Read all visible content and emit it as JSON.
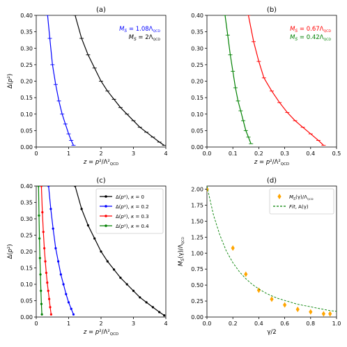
{
  "chart_data": [
    {
      "type": "line",
      "title": "(a)",
      "xlabel": "z = p²/Λ²QCD",
      "ylabel": "Δ(p²)",
      "xlim": [
        0,
        4
      ],
      "ylim": [
        0,
        0.4
      ],
      "xticks": [
        "0",
        "1",
        "2",
        "3",
        "4"
      ],
      "yticks": [
        "0.00",
        "0.05",
        "0.10",
        "0.15",
        "0.20",
        "0.25",
        "0.30",
        "0.35",
        "0.40"
      ],
      "legend_position": "top-right",
      "annotations": [
        {
          "text": "MS = 1.08ΛQCD",
          "color": "#0000ff"
        },
        {
          "text": "MS = 2ΛQCD",
          "color": "#000000"
        }
      ],
      "series": [
        {
          "color": "#0000ff",
          "marker": "plus",
          "x": [
            0.35,
            0.42,
            0.5,
            0.6,
            0.7,
            0.8,
            0.9,
            1.0,
            1.08,
            1.15
          ],
          "y": [
            0.4,
            0.33,
            0.25,
            0.19,
            0.14,
            0.1,
            0.07,
            0.04,
            0.02,
            0.005
          ]
        },
        {
          "color": "#000000",
          "marker": "plus",
          "x": [
            1.2,
            1.4,
            1.6,
            1.8,
            2.0,
            2.2,
            2.4,
            2.6,
            2.8,
            3.0,
            3.2,
            3.4,
            3.6,
            3.8,
            3.95
          ],
          "y": [
            0.4,
            0.33,
            0.28,
            0.24,
            0.2,
            0.17,
            0.145,
            0.12,
            0.1,
            0.08,
            0.06,
            0.045,
            0.03,
            0.015,
            0.005
          ]
        }
      ]
    },
    {
      "type": "line",
      "title": "(b)",
      "xlabel": "z = p²/Λ²QCD",
      "ylabel": "",
      "xlim": [
        0,
        0.5
      ],
      "ylim": [
        0,
        0.4
      ],
      "xticks": [
        "0.0",
        "0.1",
        "0.2",
        "0.3",
        "0.4",
        "0.5"
      ],
      "yticks": [
        "0.00",
        "0.05",
        "0.10",
        "0.15",
        "0.20",
        "0.25",
        "0.30",
        "0.35",
        "0.40"
      ],
      "legend_position": "top-right",
      "annotations": [
        {
          "text": "MS = 0.67ΛQCD",
          "color": "#ff0000"
        },
        {
          "text": "MS = 0.42ΛQCD",
          "color": "#008000"
        }
      ],
      "series": [
        {
          "color": "#008000",
          "marker": "plus",
          "x": [
            0.07,
            0.08,
            0.09,
            0.1,
            0.11,
            0.12,
            0.13,
            0.14,
            0.15,
            0.16,
            0.17
          ],
          "y": [
            0.4,
            0.34,
            0.28,
            0.23,
            0.18,
            0.14,
            0.11,
            0.08,
            0.05,
            0.03,
            0.01
          ]
        },
        {
          "color": "#ff0000",
          "marker": "plus",
          "x": [
            0.16,
            0.18,
            0.2,
            0.22,
            0.25,
            0.28,
            0.31,
            0.34,
            0.37,
            0.4,
            0.43,
            0.45
          ],
          "y": [
            0.4,
            0.32,
            0.26,
            0.21,
            0.17,
            0.135,
            0.105,
            0.08,
            0.06,
            0.04,
            0.02,
            0.005
          ]
        }
      ]
    },
    {
      "type": "line",
      "title": "(c)",
      "xlabel": "z = p²/Λ²QCD",
      "ylabel": "Δ(p²)",
      "xlim": [
        0,
        4
      ],
      "ylim": [
        0,
        0.4
      ],
      "xticks": [
        "0",
        "1",
        "2",
        "3",
        "4"
      ],
      "yticks": [
        "0.00",
        "0.05",
        "0.10",
        "0.15",
        "0.20",
        "0.25",
        "0.30",
        "0.35",
        "0.40"
      ],
      "legend_position": "top-right",
      "series": [
        {
          "name": "Δ(p²), κ = 0",
          "color": "#000000",
          "marker": "dot",
          "x": [
            1.2,
            1.4,
            1.6,
            1.8,
            2.0,
            2.2,
            2.4,
            2.6,
            2.8,
            3.0,
            3.2,
            3.4,
            3.6,
            3.8,
            3.95
          ],
          "y": [
            0.4,
            0.33,
            0.28,
            0.24,
            0.2,
            0.17,
            0.145,
            0.12,
            0.1,
            0.08,
            0.06,
            0.045,
            0.03,
            0.015,
            0.005
          ]
        },
        {
          "name": "Δ(p²), κ = 0.2",
          "color": "#0000ff",
          "marker": "dot",
          "x": [
            0.38,
            0.45,
            0.52,
            0.6,
            0.68,
            0.76,
            0.84,
            0.92,
            1.0,
            1.08,
            1.15
          ],
          "y": [
            0.4,
            0.33,
            0.27,
            0.21,
            0.17,
            0.13,
            0.1,
            0.07,
            0.045,
            0.025,
            0.008
          ]
        },
        {
          "name": "Δ(p²), κ = 0.3",
          "color": "#ff0000",
          "marker": "dot",
          "x": [
            0.16,
            0.19,
            0.22,
            0.25,
            0.28,
            0.31,
            0.34,
            0.37,
            0.4,
            0.43,
            0.46
          ],
          "y": [
            0.4,
            0.32,
            0.26,
            0.21,
            0.17,
            0.135,
            0.105,
            0.08,
            0.055,
            0.03,
            0.008
          ]
        },
        {
          "name": "Δ(p²), κ = 0.4",
          "color": "#008000",
          "marker": "dot",
          "x": [
            0.07,
            0.085,
            0.1,
            0.115,
            0.13,
            0.145,
            0.16,
            0.175
          ],
          "y": [
            0.4,
            0.31,
            0.24,
            0.18,
            0.13,
            0.08,
            0.04,
            0.008
          ]
        }
      ]
    },
    {
      "type": "scatter",
      "title": "(d)",
      "xlabel": "γ/2",
      "ylabel": "MS(γ)/ΛQCD",
      "xlim": [
        0,
        1
      ],
      "ylim": [
        0,
        2.05
      ],
      "xticks": [
        "0.0",
        "0.2",
        "0.4",
        "0.6",
        "0.8",
        "1.0"
      ],
      "yticks": [
        "0.00",
        "0.25",
        "0.50",
        "0.75",
        "1.00",
        "1.25",
        "1.50",
        "1.75",
        "2.00"
      ],
      "legend_position": "top-right",
      "series": [
        {
          "name": "MS(γ)/ΛQCD",
          "color": "#ffa500",
          "marker": "diamond",
          "x": [
            0.0,
            0.2,
            0.3,
            0.4,
            0.5,
            0.6,
            0.7,
            0.8,
            0.9,
            0.95
          ],
          "y": [
            2.0,
            1.08,
            0.67,
            0.42,
            0.28,
            0.19,
            0.12,
            0.08,
            0.05,
            0.05
          ]
        },
        {
          "name": "Fit, A(γ)",
          "color": "#008000",
          "marker": "dashed-line",
          "x": [
            0.0,
            0.05,
            0.1,
            0.15,
            0.2,
            0.25,
            0.3,
            0.35,
            0.4,
            0.45,
            0.5,
            0.55,
            0.6,
            0.65,
            0.7,
            0.75,
            0.8,
            0.85,
            0.9,
            0.95,
            1.0
          ],
          "y": [
            2.05,
            1.6,
            1.28,
            1.03,
            0.85,
            0.71,
            0.6,
            0.51,
            0.44,
            0.38,
            0.33,
            0.29,
            0.26,
            0.23,
            0.2,
            0.18,
            0.16,
            0.14,
            0.12,
            0.1,
            0.09
          ]
        }
      ]
    }
  ]
}
